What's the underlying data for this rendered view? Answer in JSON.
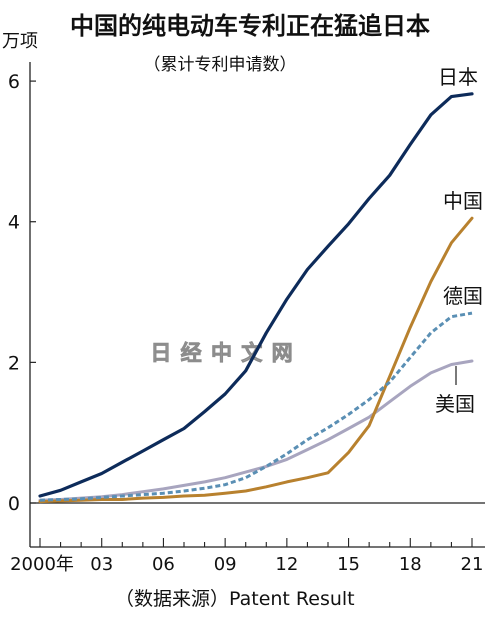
{
  "chart_data": {
    "type": "line",
    "title": "中国的纯电动车专利正在猛追日本",
    "subtitle": "（累计专利申请数）",
    "ylabel": "万项",
    "source": "（数据来源）Patent Result",
    "watermark": "日 经 中 文 网",
    "x": [
      2000,
      2001,
      2002,
      2003,
      2004,
      2005,
      2006,
      2007,
      2008,
      2009,
      2010,
      2011,
      2012,
      2013,
      2014,
      2015,
      2016,
      2017,
      2018,
      2019,
      2020,
      2021
    ],
    "x_tick_values": [
      2000,
      2003,
      2006,
      2009,
      2012,
      2015,
      2018,
      2021
    ],
    "x_tick_labels": [
      "2000年",
      "03",
      "06",
      "09",
      "12",
      "15",
      "18",
      "21"
    ],
    "xlim": [
      2000,
      2021
    ],
    "ylim": [
      0,
      6.3
    ],
    "y_ticks": [
      0,
      2,
      4,
      6
    ],
    "grid": false,
    "series": [
      {
        "name": "日本",
        "color": "#0d2b5a",
        "style": "solid",
        "values": [
          0.1,
          0.18,
          0.3,
          0.42,
          0.58,
          0.74,
          0.9,
          1.06,
          1.3,
          1.55,
          1.88,
          2.42,
          2.9,
          3.32,
          3.65,
          3.97,
          4.33,
          4.66,
          5.1,
          5.52,
          5.78,
          5.82
        ]
      },
      {
        "name": "中国",
        "color": "#b8812e",
        "style": "solid",
        "values": [
          0.02,
          0.03,
          0.04,
          0.05,
          0.05,
          0.07,
          0.08,
          0.1,
          0.11,
          0.14,
          0.17,
          0.23,
          0.3,
          0.36,
          0.43,
          0.72,
          1.1,
          1.8,
          2.5,
          3.15,
          3.7,
          4.05
        ]
      },
      {
        "name": "德国",
        "color": "#5a8fb4",
        "style": "dashed",
        "values": [
          0.04,
          0.05,
          0.06,
          0.08,
          0.1,
          0.12,
          0.14,
          0.17,
          0.21,
          0.26,
          0.36,
          0.52,
          0.7,
          0.9,
          1.07,
          1.26,
          1.47,
          1.72,
          2.07,
          2.42,
          2.65,
          2.7
        ]
      },
      {
        "name": "美国",
        "color": "#a8a5bf",
        "style": "solid",
        "values": [
          0.04,
          0.05,
          0.07,
          0.09,
          0.12,
          0.16,
          0.2,
          0.25,
          0.3,
          0.36,
          0.44,
          0.52,
          0.62,
          0.76,
          0.9,
          1.06,
          1.22,
          1.44,
          1.66,
          1.85,
          1.97,
          2.02
        ]
      }
    ]
  }
}
